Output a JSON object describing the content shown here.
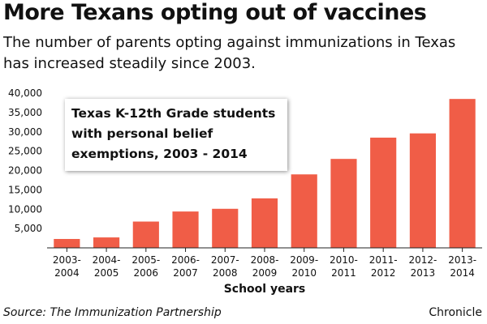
{
  "headline": "More Texans opting out of vaccines",
  "subtitle": "The number of parents opting against immunizations in Texas has increased steadily since 2003.",
  "source": "Source: The Immunization Partnership",
  "brand": "Chronicle",
  "bar_color": "#f05d47",
  "chart_data": {
    "type": "bar",
    "title": "Texas K-12th Grade students with personal belief exemptions, 2003 - 2014",
    "xlabel": "School years",
    "ylabel": "",
    "categories": [
      [
        "2003-",
        "2004"
      ],
      [
        "2004-",
        "2005"
      ],
      [
        "2005-",
        "2006"
      ],
      [
        "2006-",
        "2007"
      ],
      [
        "2007-",
        "2008"
      ],
      [
        "2008-",
        "2009"
      ],
      [
        "2009-",
        "2010"
      ],
      [
        "2010-",
        "2011"
      ],
      [
        "2011-",
        "2012"
      ],
      [
        "2012-",
        "2013"
      ],
      [
        "2013-",
        "2014"
      ]
    ],
    "values": [
      2300,
      2700,
      6800,
      9400,
      10100,
      12800,
      19000,
      23000,
      28500,
      29600,
      38500
    ],
    "ylim": [
      0,
      40000
    ],
    "yticks": [
      5000,
      10000,
      15000,
      20000,
      25000,
      30000,
      35000,
      40000
    ],
    "ytick_labels": [
      "5,000",
      "10,000",
      "15,000",
      "20,000",
      "25,000",
      "30,000",
      "35,000",
      "40,000"
    ],
    "grid": false,
    "legend": "none"
  }
}
